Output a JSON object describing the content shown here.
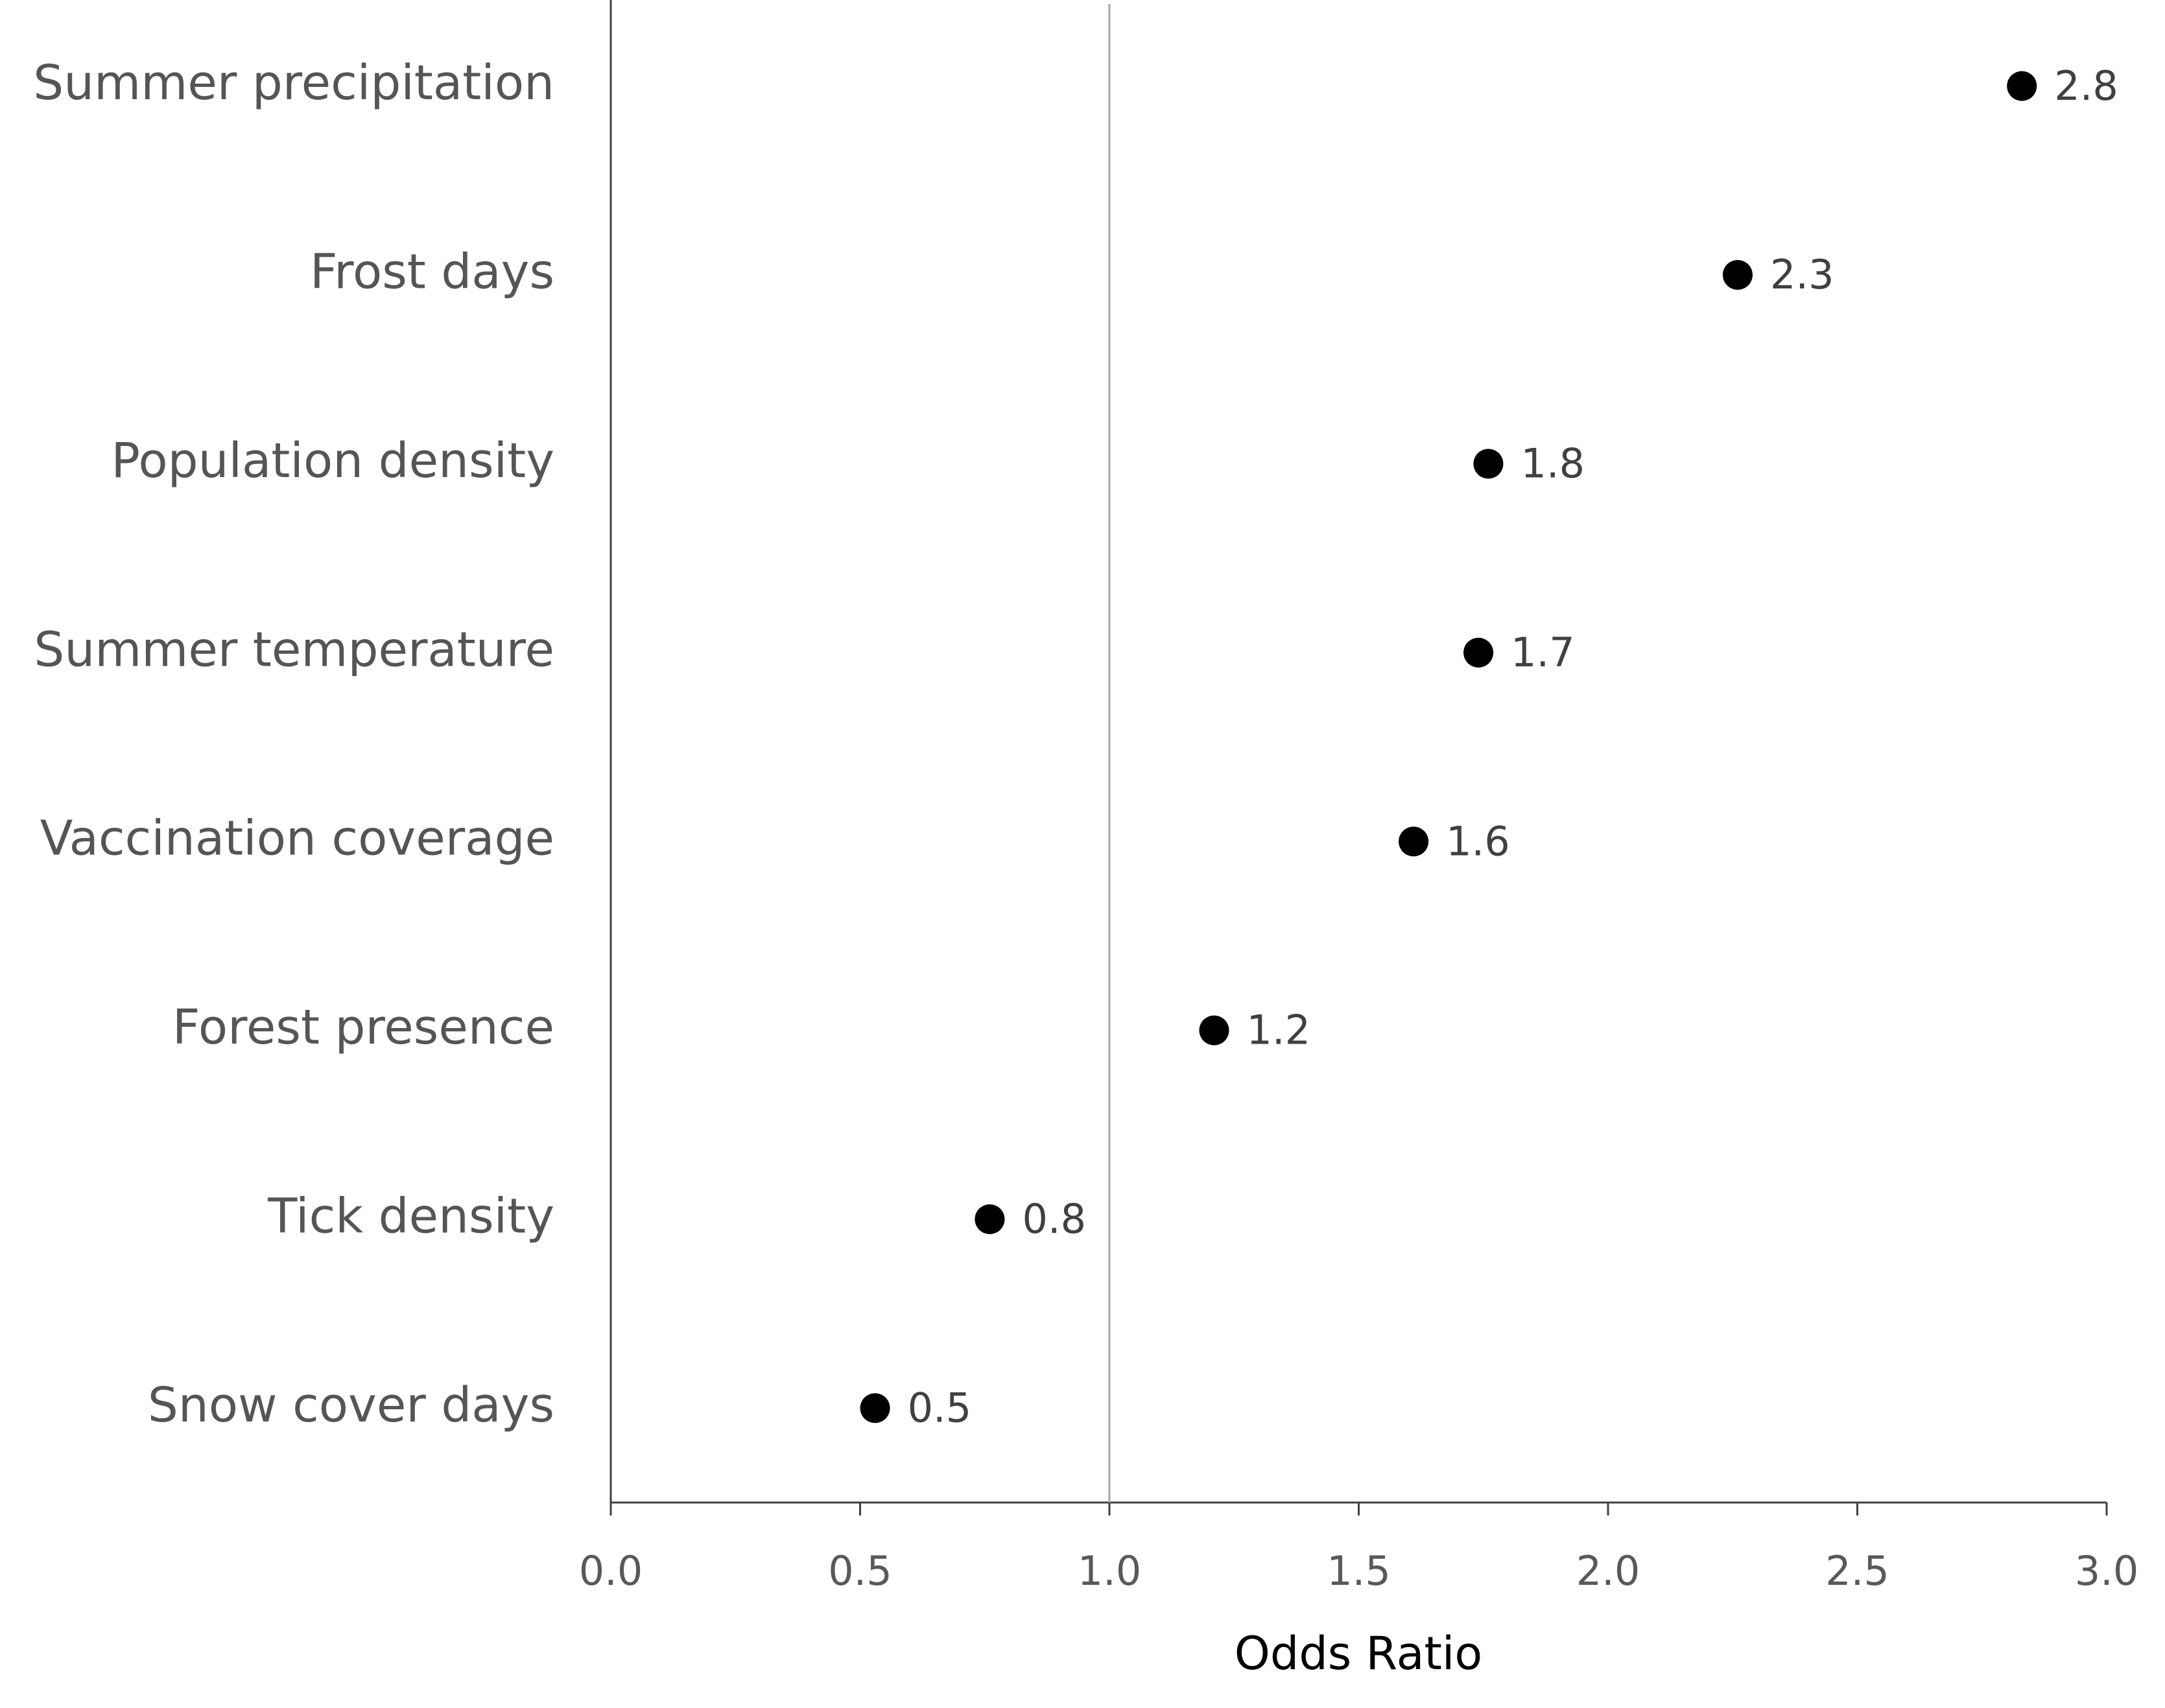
{
  "chart_data": {
    "type": "dot",
    "x_label": "Odds Ratio",
    "categories": [
      "Summer precipitation",
      "Frost days",
      "Population density",
      "Summer temperature",
      "Vaccination coverage",
      "Forest presence",
      "Tick density",
      "Snow cover days"
    ],
    "values": [
      2.83,
      2.26,
      1.76,
      1.74,
      1.61,
      1.21,
      0.76,
      0.53
    ],
    "value_labels": [
      "2.8",
      "2.3",
      "1.8",
      "1.7",
      "1.6",
      "1.2",
      "0.8",
      "0.5"
    ],
    "color": "#000000",
    "xlim": [
      0,
      3
    ],
    "xticks": [
      {
        "value": 0,
        "label": "0.0"
      },
      {
        "value": 0.5,
        "label": "0.5"
      },
      {
        "value": 1,
        "label": "1.0"
      },
      {
        "value": 1.5,
        "label": "1.5"
      },
      {
        "value": 2,
        "label": "2.0"
      },
      {
        "value": 2.5,
        "label": "2.5"
      },
      {
        "value": 3,
        "label": "3.0"
      }
    ],
    "reference_line": 1
  }
}
